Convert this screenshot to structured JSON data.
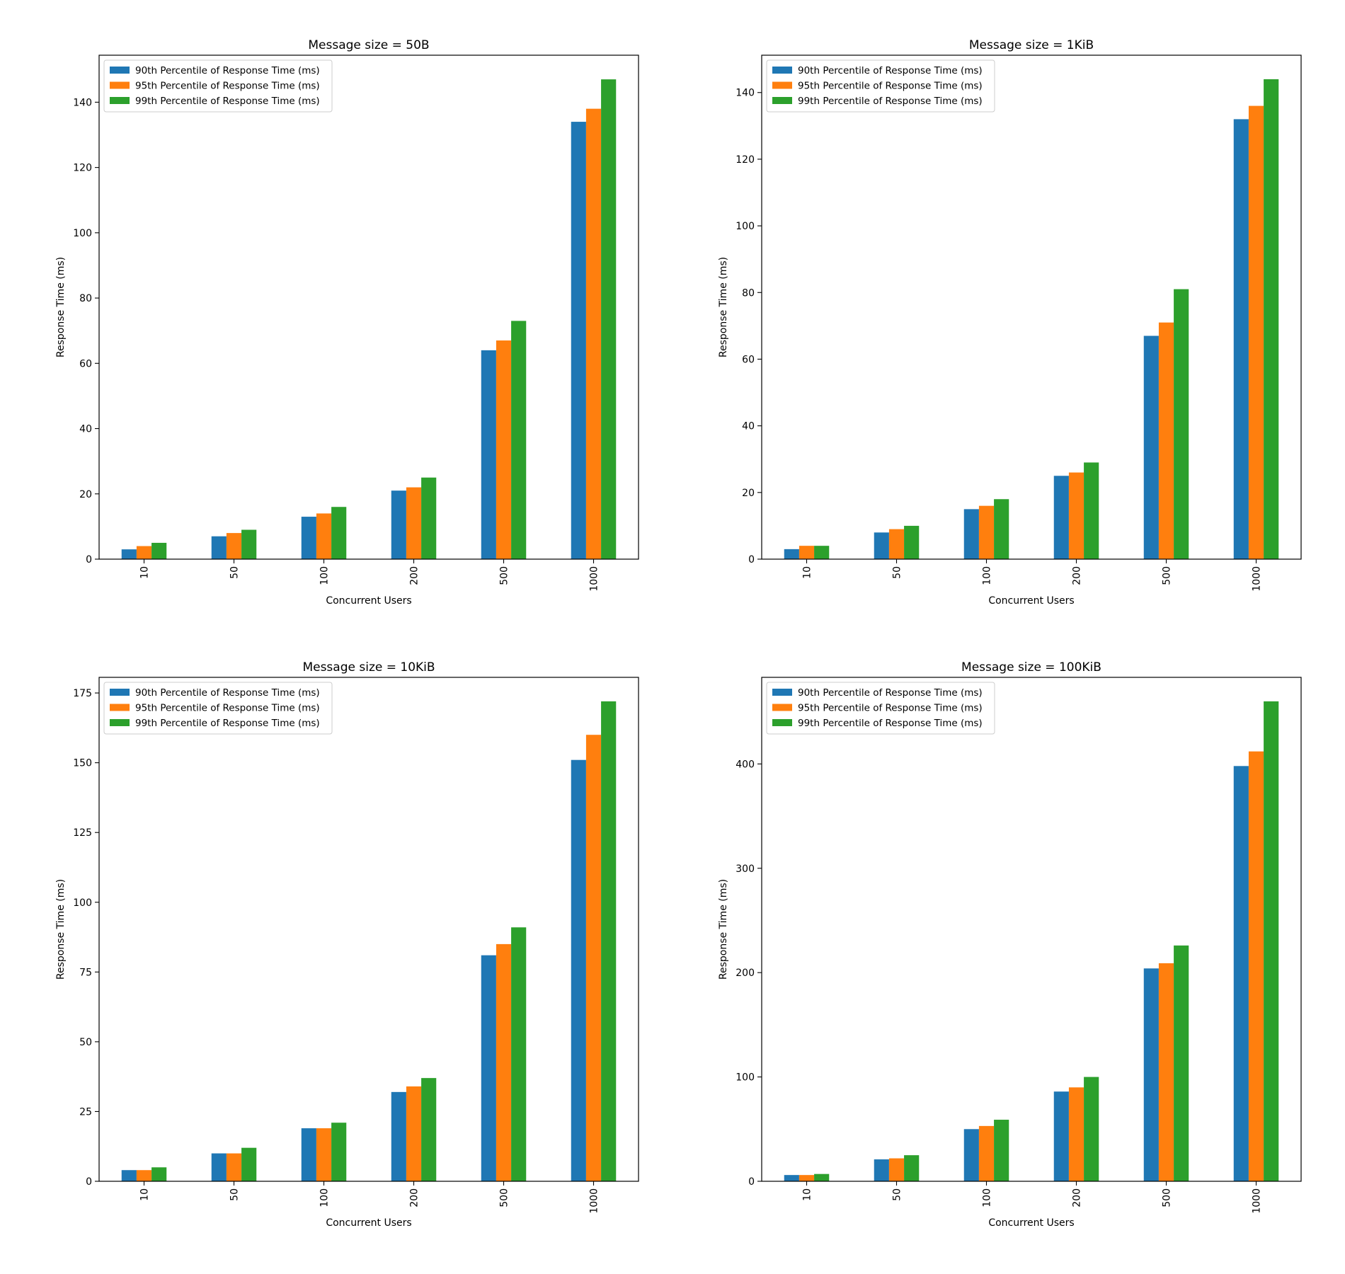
{
  "figure": {
    "colors": {
      "p90": "#1f77b4",
      "p95": "#ff7f0e",
      "p99": "#2ca02c"
    }
  },
  "chart_data": [
    {
      "type": "bar",
      "title": "Message size = 50B",
      "xlabel": "Concurrent Users",
      "ylabel": "Response Time (ms)",
      "categories": [
        "10",
        "50",
        "100",
        "200",
        "500",
        "1000"
      ],
      "ylim": [
        0,
        154.4
      ],
      "yticks": [
        0,
        20,
        40,
        60,
        80,
        100,
        120,
        140
      ],
      "legend": "top-left",
      "grid": false,
      "series": [
        {
          "name": "90th Percentile of Response Time (ms)",
          "color": "#1f77b4",
          "values": [
            3,
            7,
            13,
            21,
            64,
            134
          ]
        },
        {
          "name": "95th Percentile of Response Time (ms)",
          "color": "#ff7f0e",
          "values": [
            4,
            8,
            14,
            22,
            67,
            138
          ]
        },
        {
          "name": "99th Percentile of Response Time (ms)",
          "color": "#2ca02c",
          "values": [
            5,
            9,
            16,
            25,
            73,
            147
          ]
        }
      ]
    },
    {
      "type": "bar",
      "title": "Message size = 1KiB",
      "xlabel": "Concurrent Users",
      "ylabel": "Response Time (ms)",
      "categories": [
        "10",
        "50",
        "100",
        "200",
        "500",
        "1000"
      ],
      "ylim": [
        0,
        151.2
      ],
      "yticks": [
        0,
        20,
        40,
        60,
        80,
        100,
        120,
        140
      ],
      "legend": "top-left",
      "grid": false,
      "series": [
        {
          "name": "90th Percentile of Response Time (ms)",
          "color": "#1f77b4",
          "values": [
            3,
            8,
            15,
            25,
            67,
            132
          ]
        },
        {
          "name": "95th Percentile of Response Time (ms)",
          "color": "#ff7f0e",
          "values": [
            4,
            9,
            16,
            26,
            71,
            136
          ]
        },
        {
          "name": "99th Percentile of Response Time (ms)",
          "color": "#2ca02c",
          "values": [
            4,
            10,
            18,
            29,
            81,
            144
          ]
        }
      ]
    },
    {
      "type": "bar",
      "title": "Message size = 10KiB",
      "xlabel": "Concurrent Users",
      "ylabel": "Response Time (ms)",
      "categories": [
        "10",
        "50",
        "100",
        "200",
        "500",
        "1000"
      ],
      "ylim": [
        0,
        180.6
      ],
      "yticks": [
        0,
        25,
        50,
        75,
        100,
        125,
        150,
        175
      ],
      "legend": "top-left",
      "grid": false,
      "series": [
        {
          "name": "90th Percentile of Response Time (ms)",
          "color": "#1f77b4",
          "values": [
            4,
            10,
            19,
            32,
            81,
            151
          ]
        },
        {
          "name": "95th Percentile of Response Time (ms)",
          "color": "#ff7f0e",
          "values": [
            4,
            10,
            19,
            34,
            85,
            160
          ]
        },
        {
          "name": "99th Percentile of Response Time (ms)",
          "color": "#2ca02c",
          "values": [
            5,
            12,
            21,
            37,
            91,
            172
          ]
        }
      ]
    },
    {
      "type": "bar",
      "title": "Message size = 100KiB",
      "xlabel": "Concurrent Users",
      "ylabel": "Response Time (ms)",
      "categories": [
        "10",
        "50",
        "100",
        "200",
        "500",
        "1000"
      ],
      "ylim": [
        0,
        483
      ],
      "yticks": [
        0,
        100,
        200,
        300,
        400
      ],
      "legend": "top-left",
      "grid": false,
      "series": [
        {
          "name": "90th Percentile of Response Time (ms)",
          "color": "#1f77b4",
          "values": [
            6,
            21,
            50,
            86,
            204,
            398
          ]
        },
        {
          "name": "95th Percentile of Response Time (ms)",
          "color": "#ff7f0e",
          "values": [
            6,
            22,
            53,
            90,
            209,
            412
          ]
        },
        {
          "name": "99th Percentile of Response Time (ms)",
          "color": "#2ca02c",
          "values": [
            7,
            25,
            59,
            100,
            226,
            460
          ]
        }
      ]
    }
  ]
}
